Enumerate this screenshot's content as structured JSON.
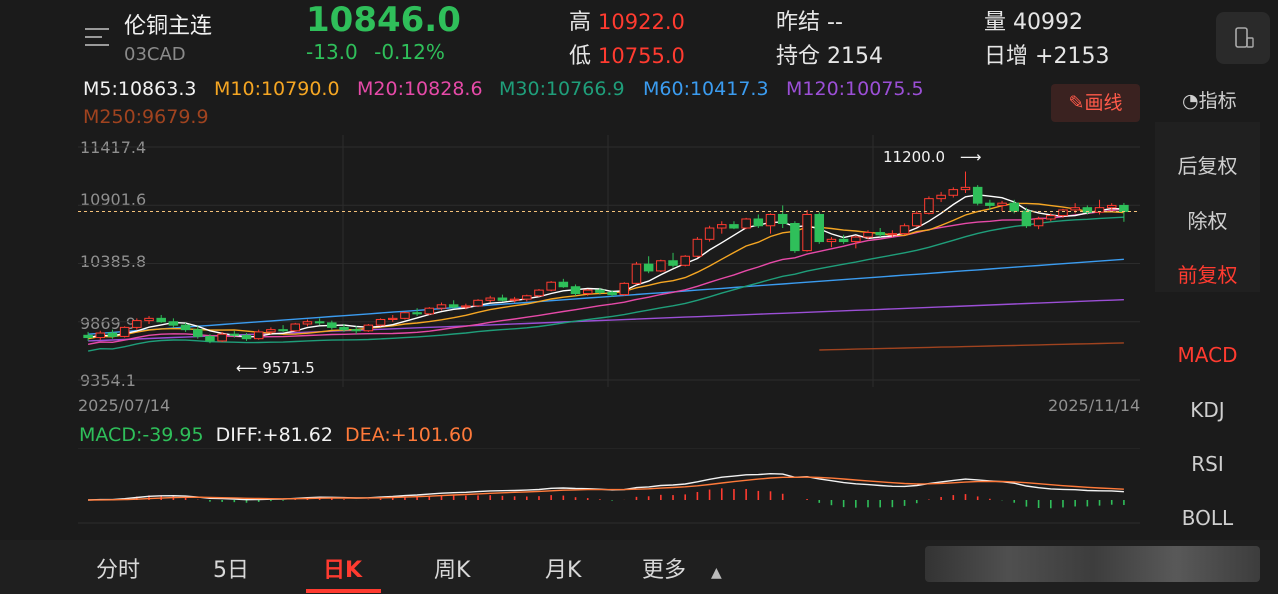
{
  "header": {
    "title": "伦铜主连",
    "code": "03CAD",
    "last_price": "10846.0",
    "change": "-13.0",
    "change_pct": "-0.12%",
    "high_label": "高",
    "high_value": "10922.0",
    "low_label": "低",
    "low_value": "10755.0",
    "prev_settle_label": "昨结",
    "prev_settle_value": "--",
    "open_interest_label": "持仓",
    "open_interest_value": "2154",
    "volume_label": "量",
    "volume_value": "40992",
    "daily_increase_label": "日增",
    "daily_increase_value": "+2153"
  },
  "ma_legend": {
    "m5": "M5:10863.3",
    "m10": "M10:10790.0",
    "m20": "M20:10828.6",
    "m30": "M30:10766.9",
    "m60": "M60:10417.3",
    "m120": "M120:10075.5",
    "m250": "M250:9679.9"
  },
  "toolbar": {
    "draw_label": "画线",
    "indicator_label": "指标"
  },
  "side_menu": {
    "adjust": [
      "后复权",
      "除权",
      "前复权"
    ],
    "indicators": [
      "MACD",
      "KDJ",
      "RSI",
      "BOLL"
    ]
  },
  "macd_legend": {
    "macd": "MACD:-39.95",
    "diff": "DIFF:+81.62",
    "dea": "DEA:+101.60"
  },
  "tabs": [
    "分时",
    "5日",
    "日K",
    "周K",
    "月K",
    "更多"
  ],
  "colors": {
    "up": "#ff3b30",
    "down": "#2fbf5a",
    "m5": "#ffffff",
    "m10": "#f5a623",
    "m20": "#e64aa8",
    "m30": "#1f9e7a",
    "m60": "#3b9cf0",
    "m120": "#9b4fd6",
    "m250": "#a0431f"
  },
  "chart_data": {
    "type": "candlestick",
    "y_ticks": [
      "11417.4",
      "10901.6",
      "10385.8",
      "9869.9",
      "9354.1"
    ],
    "ylim": [
      9354.1,
      11417.4
    ],
    "date_start": "2025/07/14",
    "date_end": "2025/11/14",
    "annotations": {
      "high": "11200.0",
      "low": "9571.5"
    },
    "current_price_line": 10846.0,
    "candles": [
      [
        9750,
        9780,
        9700,
        9730
      ],
      [
        9730,
        9790,
        9710,
        9770
      ],
      [
        9770,
        9800,
        9720,
        9740
      ],
      [
        9740,
        9830,
        9730,
        9820
      ],
      [
        9820,
        9900,
        9800,
        9880
      ],
      [
        9880,
        9920,
        9850,
        9900
      ],
      [
        9900,
        9930,
        9860,
        9870
      ],
      [
        9870,
        9900,
        9820,
        9840
      ],
      [
        9840,
        9860,
        9780,
        9800
      ],
      [
        9800,
        9830,
        9720,
        9740
      ],
      [
        9740,
        9760,
        9680,
        9700
      ],
      [
        9700,
        9780,
        9690,
        9760
      ],
      [
        9760,
        9790,
        9730,
        9750
      ],
      [
        9750,
        9770,
        9700,
        9720
      ],
      [
        9720,
        9800,
        9710,
        9780
      ],
      [
        9780,
        9820,
        9760,
        9800
      ],
      [
        9800,
        9840,
        9780,
        9790
      ],
      [
        9790,
        9860,
        9780,
        9850
      ],
      [
        9850,
        9890,
        9830,
        9870
      ],
      [
        9870,
        9900,
        9840,
        9860
      ],
      [
        9860,
        9880,
        9800,
        9820
      ],
      [
        9820,
        9850,
        9780,
        9800
      ],
      [
        9800,
        9830,
        9760,
        9790
      ],
      [
        9790,
        9850,
        9780,
        9840
      ],
      [
        9840,
        9900,
        9830,
        9890
      ],
      [
        9890,
        9930,
        9870,
        9900
      ],
      [
        9900,
        9960,
        9890,
        9950
      ],
      [
        9950,
        9990,
        9920,
        9940
      ],
      [
        9940,
        10000,
        9930,
        9990
      ],
      [
        9990,
        10040,
        9970,
        10020
      ],
      [
        10020,
        10060,
        9990,
        10000
      ],
      [
        10000,
        10030,
        9980,
        10010
      ],
      [
        10010,
        10070,
        10000,
        10060
      ],
      [
        10060,
        10100,
        10040,
        10080
      ],
      [
        10080,
        10110,
        10050,
        10060
      ],
      [
        10060,
        10090,
        10040,
        10070
      ],
      [
        10070,
        10110,
        10050,
        10100
      ],
      [
        10100,
        10160,
        10090,
        10150
      ],
      [
        10150,
        10230,
        10140,
        10220
      ],
      [
        10220,
        10250,
        10170,
        10180
      ],
      [
        10180,
        10200,
        10100,
        10120
      ],
      [
        10120,
        10160,
        10100,
        10150
      ],
      [
        10150,
        10170,
        10110,
        10130
      ],
      [
        10130,
        10150,
        10090,
        10110
      ],
      [
        10110,
        10220,
        10100,
        10210
      ],
      [
        10210,
        10400,
        10200,
        10380
      ],
      [
        10380,
        10450,
        10300,
        10320
      ],
      [
        10320,
        10420,
        10310,
        10410
      ],
      [
        10410,
        10480,
        10350,
        10370
      ],
      [
        10370,
        10460,
        10360,
        10450
      ],
      [
        10450,
        10620,
        10440,
        10600
      ],
      [
        10600,
        10720,
        10580,
        10700
      ],
      [
        10700,
        10760,
        10650,
        10730
      ],
      [
        10730,
        10760,
        10690,
        10700
      ],
      [
        10700,
        10790,
        10690,
        10780
      ],
      [
        10780,
        10820,
        10700,
        10720
      ],
      [
        10720,
        10830,
        10650,
        10820
      ],
      [
        10820,
        10900,
        10700,
        10740
      ],
      [
        10740,
        10760,
        10480,
        10500
      ],
      [
        10500,
        10860,
        10490,
        10820
      ],
      [
        10820,
        10840,
        10560,
        10580
      ],
      [
        10580,
        10620,
        10530,
        10600
      ],
      [
        10600,
        10640,
        10560,
        10580
      ],
      [
        10580,
        10630,
        10520,
        10620
      ],
      [
        10620,
        10680,
        10600,
        10660
      ],
      [
        10660,
        10700,
        10620,
        10640
      ],
      [
        10640,
        10680,
        10620,
        10650
      ],
      [
        10650,
        10740,
        10640,
        10720
      ],
      [
        10720,
        10850,
        10710,
        10830
      ],
      [
        10830,
        10980,
        10820,
        10960
      ],
      [
        10960,
        11020,
        10930,
        10990
      ],
      [
        10990,
        11060,
        10970,
        11040
      ],
      [
        11040,
        11200,
        11010,
        11060
      ],
      [
        11060,
        11080,
        10900,
        10920
      ],
      [
        10920,
        10950,
        10860,
        10900
      ],
      [
        10900,
        10940,
        10850,
        10920
      ],
      [
        10920,
        10950,
        10830,
        10850
      ],
      [
        10850,
        10880,
        10700,
        10720
      ],
      [
        10720,
        10800,
        10690,
        10780
      ],
      [
        10780,
        10830,
        10760,
        10810
      ],
      [
        10810,
        10870,
        10790,
        10860
      ],
      [
        10860,
        10920,
        10830,
        10880
      ],
      [
        10880,
        10900,
        10820,
        10840
      ],
      [
        10840,
        10950,
        10820,
        10880
      ],
      [
        10880,
        10920,
        10840,
        10900
      ],
      [
        10900,
        10922,
        10755,
        10846
      ]
    ]
  }
}
